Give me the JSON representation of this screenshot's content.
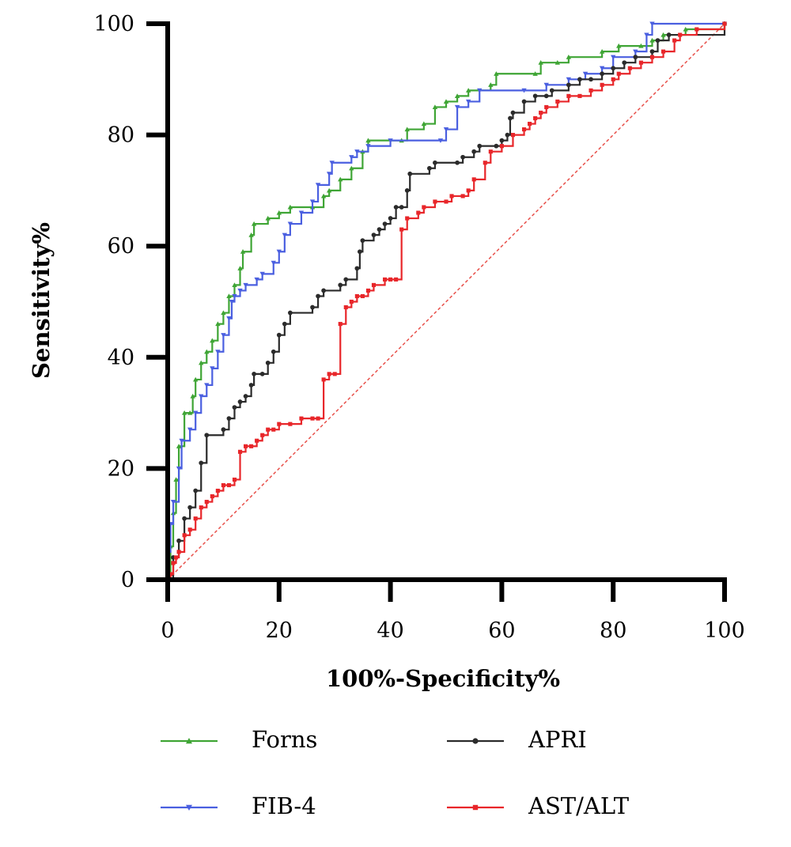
{
  "chart_data": {
    "type": "line",
    "title": "",
    "xlabel": "100%-Specificity%",
    "ylabel": "Sensitivity%",
    "xlim": [
      0,
      100
    ],
    "ylim": [
      0,
      100
    ],
    "x_ticks": [
      "0",
      "20",
      "40",
      "60",
      "80",
      "100"
    ],
    "y_ticks": [
      "0",
      "20",
      "40",
      "60",
      "80",
      "100"
    ],
    "grid": false,
    "legend_position": "bottom",
    "reference_line": {
      "style": "dashed",
      "color": "#e8504a",
      "from": [
        0,
        0
      ],
      "to": [
        100,
        100
      ]
    },
    "series": [
      {
        "name": "Forns",
        "color": "#3fa535",
        "marker": "triangle-up",
        "points": [
          [
            0,
            0
          ],
          [
            0.5,
            6
          ],
          [
            1,
            12
          ],
          [
            1.5,
            18
          ],
          [
            2,
            24
          ],
          [
            3,
            30
          ],
          [
            4,
            30
          ],
          [
            4.5,
            33
          ],
          [
            5,
            36
          ],
          [
            6,
            39
          ],
          [
            7,
            41
          ],
          [
            8,
            43
          ],
          [
            9,
            46
          ],
          [
            10,
            48
          ],
          [
            11,
            51
          ],
          [
            12,
            53
          ],
          [
            13,
            56
          ],
          [
            13.5,
            59
          ],
          [
            15,
            62
          ],
          [
            15.5,
            64
          ],
          [
            18,
            65
          ],
          [
            20,
            66
          ],
          [
            22,
            67
          ],
          [
            26,
            67
          ],
          [
            28,
            69
          ],
          [
            29,
            70
          ],
          [
            31,
            72
          ],
          [
            33,
            74
          ],
          [
            35,
            77
          ],
          [
            36,
            79
          ],
          [
            42,
            79
          ],
          [
            43,
            81
          ],
          [
            46,
            82
          ],
          [
            48,
            85
          ],
          [
            50,
            86
          ],
          [
            52,
            87
          ],
          [
            54,
            88
          ],
          [
            58,
            89
          ],
          [
            59,
            91
          ],
          [
            66,
            91
          ],
          [
            67,
            93
          ],
          [
            70,
            93
          ],
          [
            72,
            94
          ],
          [
            78,
            95
          ],
          [
            81,
            96
          ],
          [
            85,
            96
          ],
          [
            87,
            97
          ],
          [
            89,
            98
          ],
          [
            93,
            99
          ],
          [
            100,
            100
          ]
        ]
      },
      {
        "name": "FIB-4",
        "color": "#4a5fe0",
        "marker": "triangle-down",
        "points": [
          [
            0,
            0
          ],
          [
            0,
            5
          ],
          [
            0.5,
            10
          ],
          [
            1,
            14
          ],
          [
            2,
            20
          ],
          [
            2.5,
            25
          ],
          [
            4,
            27
          ],
          [
            5,
            30
          ],
          [
            6,
            33
          ],
          [
            7,
            35
          ],
          [
            8,
            38
          ],
          [
            9,
            41
          ],
          [
            10,
            44
          ],
          [
            11,
            47
          ],
          [
            11.5,
            50
          ],
          [
            12,
            51
          ],
          [
            13,
            52
          ],
          [
            14,
            53
          ],
          [
            16,
            54
          ],
          [
            17,
            55
          ],
          [
            19,
            57
          ],
          [
            20,
            59
          ],
          [
            21,
            62
          ],
          [
            22,
            64
          ],
          [
            24,
            66
          ],
          [
            26,
            68
          ],
          [
            27,
            71
          ],
          [
            29,
            73
          ],
          [
            29.5,
            75
          ],
          [
            33,
            76
          ],
          [
            34,
            77
          ],
          [
            36,
            78
          ],
          [
            40,
            79
          ],
          [
            49,
            79
          ],
          [
            50,
            81
          ],
          [
            52,
            85
          ],
          [
            54,
            86
          ],
          [
            56,
            88
          ],
          [
            64,
            88
          ],
          [
            68,
            89
          ],
          [
            72,
            90
          ],
          [
            75,
            91
          ],
          [
            78,
            92
          ],
          [
            80,
            94
          ],
          [
            84,
            95
          ],
          [
            86,
            98
          ],
          [
            87,
            100
          ],
          [
            100,
            100
          ]
        ]
      },
      {
        "name": "APRI",
        "color": "#2b2b2b",
        "marker": "circle",
        "points": [
          [
            0,
            0
          ],
          [
            1,
            4
          ],
          [
            2,
            7
          ],
          [
            3,
            11
          ],
          [
            4,
            13
          ],
          [
            5,
            16
          ],
          [
            6,
            21
          ],
          [
            7,
            26
          ],
          [
            10,
            27
          ],
          [
            11,
            29
          ],
          [
            12,
            31
          ],
          [
            13,
            32
          ],
          [
            14,
            33
          ],
          [
            15,
            35
          ],
          [
            15.5,
            37
          ],
          [
            17,
            37
          ],
          [
            18,
            39
          ],
          [
            19,
            41
          ],
          [
            20,
            44
          ],
          [
            21,
            46
          ],
          [
            22,
            48
          ],
          [
            26,
            49
          ],
          [
            27,
            51
          ],
          [
            28,
            52
          ],
          [
            31,
            53
          ],
          [
            32,
            54
          ],
          [
            34,
            56
          ],
          [
            34.5,
            59
          ],
          [
            35,
            61
          ],
          [
            37,
            62
          ],
          [
            38,
            63
          ],
          [
            39,
            64
          ],
          [
            40,
            65
          ],
          [
            41,
            67
          ],
          [
            42,
            67
          ],
          [
            43,
            70
          ],
          [
            43.5,
            73
          ],
          [
            47,
            74
          ],
          [
            48,
            75
          ],
          [
            52,
            75
          ],
          [
            53,
            76
          ],
          [
            55,
            77
          ],
          [
            56,
            78
          ],
          [
            59,
            78
          ],
          [
            60,
            79
          ],
          [
            61,
            80
          ],
          [
            61.5,
            83
          ],
          [
            62,
            84
          ],
          [
            64,
            86
          ],
          [
            66,
            87
          ],
          [
            68,
            87
          ],
          [
            69,
            88
          ],
          [
            72,
            89
          ],
          [
            74,
            90
          ],
          [
            76,
            90
          ],
          [
            78,
            91
          ],
          [
            80,
            92
          ],
          [
            82,
            93
          ],
          [
            84,
            94
          ],
          [
            87,
            95
          ],
          [
            88,
            97
          ],
          [
            90,
            98
          ],
          [
            100,
            100
          ]
        ]
      },
      {
        "name": "AST/ALT",
        "color": "#e8262a",
        "marker": "square",
        "points": [
          [
            0,
            0
          ],
          [
            0.5,
            1
          ],
          [
            1,
            3
          ],
          [
            1.5,
            4
          ],
          [
            2,
            5
          ],
          [
            3,
            8
          ],
          [
            4,
            9
          ],
          [
            5,
            11
          ],
          [
            6,
            13
          ],
          [
            7,
            14
          ],
          [
            8,
            15
          ],
          [
            9,
            16
          ],
          [
            10,
            17
          ],
          [
            11,
            17
          ],
          [
            12,
            18
          ],
          [
            13,
            23
          ],
          [
            14,
            24
          ],
          [
            15,
            24
          ],
          [
            16,
            25
          ],
          [
            17,
            26
          ],
          [
            18,
            27
          ],
          [
            19,
            27
          ],
          [
            20,
            28
          ],
          [
            22,
            28
          ],
          [
            24,
            29
          ],
          [
            26,
            29
          ],
          [
            27,
            29
          ],
          [
            28,
            36
          ],
          [
            29,
            37
          ],
          [
            30,
            37
          ],
          [
            31,
            46
          ],
          [
            32,
            49
          ],
          [
            33,
            50
          ],
          [
            34,
            51
          ],
          [
            35,
            51
          ],
          [
            36,
            52
          ],
          [
            37,
            53
          ],
          [
            39,
            54
          ],
          [
            40,
            54
          ],
          [
            41,
            54
          ],
          [
            42,
            63
          ],
          [
            43,
            65
          ],
          [
            45,
            66
          ],
          [
            46,
            67
          ],
          [
            48,
            68
          ],
          [
            50,
            68
          ],
          [
            51,
            69
          ],
          [
            53,
            69
          ],
          [
            54,
            70
          ],
          [
            55,
            72
          ],
          [
            57,
            75
          ],
          [
            58,
            77
          ],
          [
            60,
            78
          ],
          [
            62,
            80
          ],
          [
            64,
            81
          ],
          [
            65,
            82
          ],
          [
            66,
            83
          ],
          [
            67,
            84
          ],
          [
            68,
            85
          ],
          [
            70,
            86
          ],
          [
            72,
            87
          ],
          [
            74,
            87
          ],
          [
            76,
            88
          ],
          [
            78,
            89
          ],
          [
            80,
            90
          ],
          [
            81,
            91
          ],
          [
            83,
            92
          ],
          [
            85,
            93
          ],
          [
            87,
            94
          ],
          [
            89,
            95
          ],
          [
            91,
            97
          ],
          [
            92,
            98
          ],
          [
            95,
            99
          ],
          [
            100,
            100
          ]
        ]
      }
    ]
  }
}
